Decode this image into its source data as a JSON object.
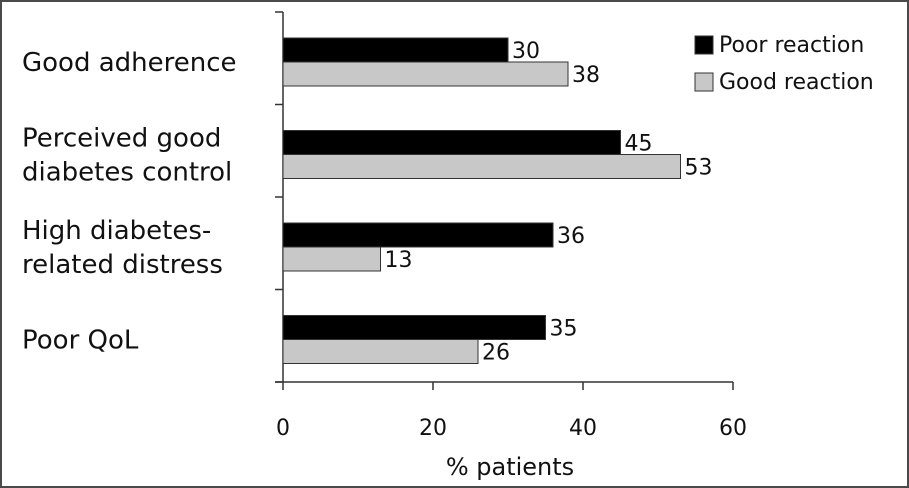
{
  "chart_data": {
    "type": "bar",
    "orientation": "horizontal",
    "categories": [
      [
        "Good adherence"
      ],
      [
        "Perceived good",
        "diabetes control"
      ],
      [
        "High diabetes-",
        "related distress"
      ],
      [
        "Poor QoL"
      ]
    ],
    "series": [
      {
        "name": "Poor reaction",
        "values": [
          30,
          45,
          36,
          35
        ],
        "color": "#000000"
      },
      {
        "name": "Good reaction",
        "values": [
          38,
          53,
          13,
          26
        ],
        "color": "#c8c8c8"
      }
    ],
    "xlabel": "% patients",
    "xlim": [
      0,
      60
    ],
    "xticks": [
      0,
      20,
      40,
      60
    ],
    "legend_position": "top-right",
    "grid": false
  }
}
